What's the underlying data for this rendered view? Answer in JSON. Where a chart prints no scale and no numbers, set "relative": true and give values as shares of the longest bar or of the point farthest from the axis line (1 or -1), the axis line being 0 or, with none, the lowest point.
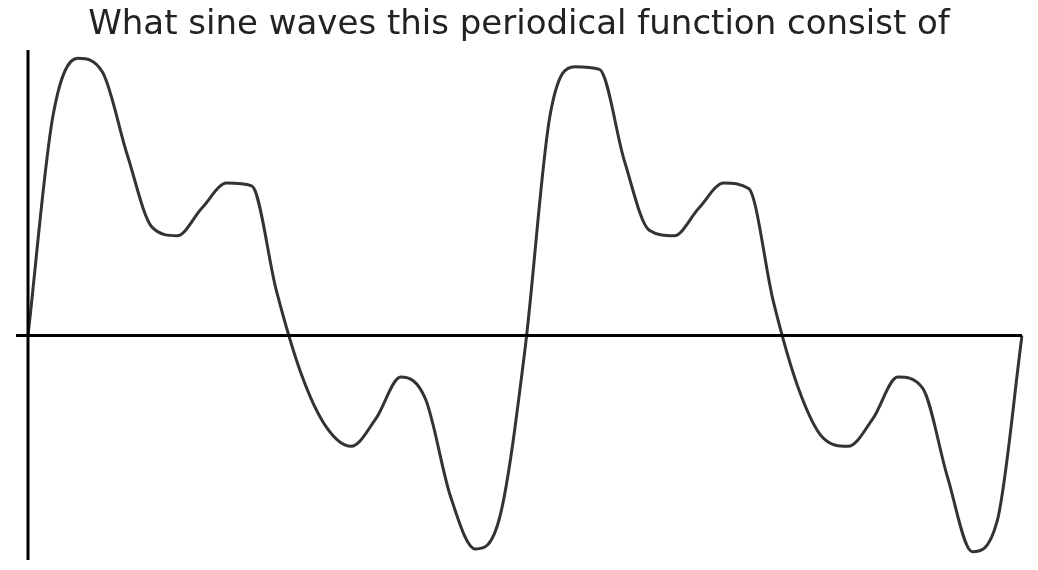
{
  "chart_data": {
    "type": "line",
    "title": "What sine waves this periodical function consist of",
    "relative": true,
    "categories": [
      null,
      null,
      null,
      null,
      null,
      null,
      null,
      null,
      null,
      null,
      null,
      null,
      null,
      null,
      null,
      null,
      null,
      null,
      null,
      null,
      null,
      null,
      null,
      null,
      null,
      null,
      null,
      null,
      null,
      null,
      null,
      null,
      null,
      null,
      null,
      null,
      null,
      null,
      null,
      null,
      null
    ],
    "series": [
      {
        "color": "#333333",
        "values": [
          0,
          0.79,
          1,
          0.95,
          0.65,
          0.39,
          0.36,
          0.46,
          0.55,
          0.54,
          0.16,
          -0.14,
          -0.33,
          -0.4,
          -0.3,
          -0.15,
          -0.23,
          -0.58,
          -0.77,
          -0.65,
          -0.05,
          0.79,
          0.97,
          0.96,
          0.63,
          0.38,
          0.36,
          0.46,
          0.55,
          0.53,
          0.12,
          -0.19,
          -0.37,
          -0.4,
          -0.3,
          -0.15,
          -0.19,
          -0.51,
          -0.78,
          -0.67,
          0
        ]
      }
    ],
    "grid": false,
    "legend": false,
    "marker": "none",
    "line_style": "solid"
  }
}
